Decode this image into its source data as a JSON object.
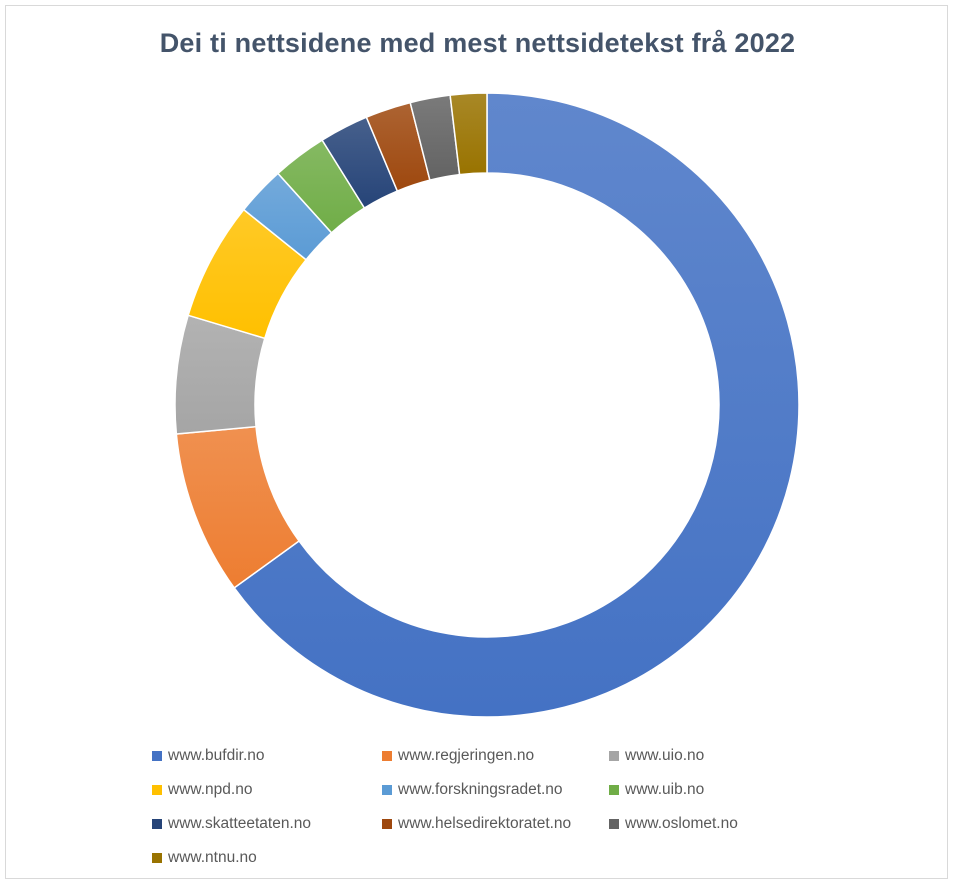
{
  "chart_data": {
    "type": "donut",
    "title": "Dei ti nettsidene med mest nettsidetekst frå 2022",
    "legend_position": "bottom",
    "slices": [
      {
        "label": "www.bufdir.no",
        "value": 69.0,
        "color": "#4472c4"
      },
      {
        "label": "www.regjeringen.no",
        "value": 9.0,
        "color": "#ed7d31"
      },
      {
        "label": "www.uio.no",
        "value": 6.5,
        "color": "#a5a5a5"
      },
      {
        "label": "www.npd.no",
        "value": 6.5,
        "color": "#ffc000"
      },
      {
        "label": "www.forskningsradet.no",
        "value": 2.7,
        "color": "#5b9bd5"
      },
      {
        "label": "www.uib.no",
        "value": 3.0,
        "color": "#70ad47"
      },
      {
        "label": "www.skatteetaten.no",
        "value": 2.7,
        "color": "#264478"
      },
      {
        "label": "www.helsedirektoratet.no",
        "value": 2.5,
        "color": "#9e480e"
      },
      {
        "label": "www.oslomet.no",
        "value": 2.2,
        "color": "#636363"
      },
      {
        "label": "www.ntnu.no",
        "value": 2.0,
        "color": "#997300"
      }
    ]
  }
}
